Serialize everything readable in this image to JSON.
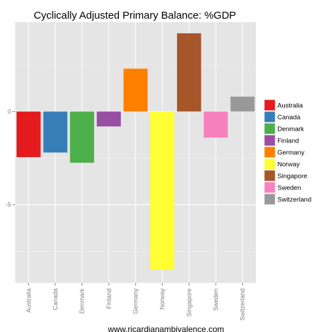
{
  "chart_data": {
    "type": "bar",
    "title": "Cyclically Adjusted Primary Balance: %GDP",
    "xlabel": "www.ricardianambivalence.com",
    "ylabel": "",
    "categories": [
      "Australia",
      "Canada",
      "Denmark",
      "Finland",
      "Germany",
      "Norway",
      "Singapore",
      "Sweden",
      "Switzerland"
    ],
    "values": [
      -2.45,
      -2.2,
      -2.75,
      -0.8,
      2.3,
      -8.5,
      4.2,
      -1.4,
      0.8
    ],
    "colors": [
      "#e41a1c",
      "#377eb8",
      "#4daf4a",
      "#984ea3",
      "#ff7f00",
      "#ffff33",
      "#a65628",
      "#f781bf",
      "#999999"
    ],
    "ylim": [
      -9.2,
      4.8
    ],
    "yticks": [
      -5,
      0
    ],
    "grid": true,
    "legend": "right",
    "legend_entries": [
      "Australia",
      "Canada",
      "Denmark",
      "Finland",
      "Germany",
      "Norway",
      "Singapore",
      "Sweden",
      "Switzerland"
    ]
  }
}
